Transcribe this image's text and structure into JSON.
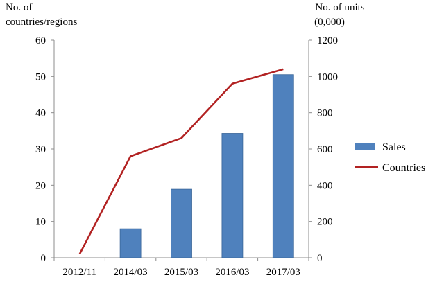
{
  "chart_data": {
    "type": "bar",
    "title": "",
    "categories": [
      "2012/11",
      "2014/03",
      "2015/03",
      "2016/03",
      "2017/03"
    ],
    "y_left": {
      "label_lines": [
        "No. of",
        "countries/regions"
      ],
      "ylim": [
        0,
        60
      ],
      "ticks": [
        0,
        10,
        20,
        30,
        40,
        50,
        60
      ]
    },
    "y_right": {
      "label_lines": [
        "No. of units",
        "(0,000)"
      ],
      "ylim": [
        0,
        1200
      ],
      "ticks": [
        0,
        200,
        400,
        600,
        800,
        1000,
        1200
      ]
    },
    "series": [
      {
        "name": "Sales",
        "kind": "bar",
        "axis": "right",
        "color": "#4f81bd",
        "values": [
          0,
          160,
          378,
          686,
          1010
        ]
      },
      {
        "name": "Countries",
        "kind": "line",
        "axis": "left",
        "color": "#b22222",
        "values": [
          1,
          28,
          33,
          48,
          52
        ]
      }
    ],
    "grid": false,
    "legend_position": "right"
  }
}
